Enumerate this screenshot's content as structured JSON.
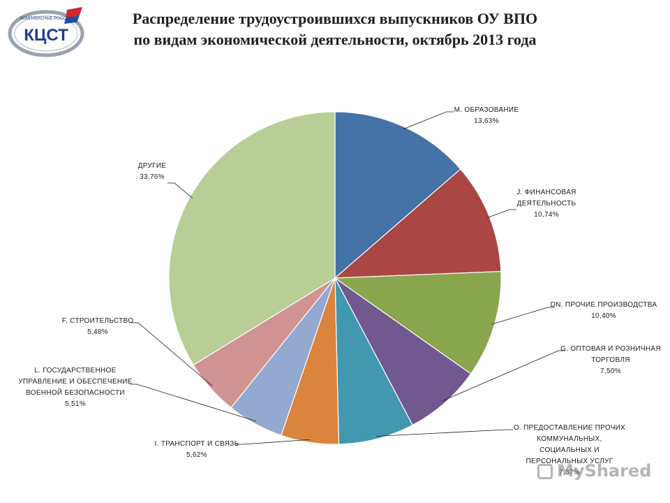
{
  "header": {
    "title_line1": "Распределение трудоустроившихся выпускников ОУ ВПО",
    "title_line2": "по видам экономической деятельности, октябрь 2013 года"
  },
  "logo": {
    "text": "КЦСТ",
    "arc_text": "КОМПЛЕКСНЫЕ РОССИИ",
    "colors": {
      "ring": "#9aa3ad",
      "text": "#1d3f8f",
      "flag_red": "#d22630",
      "flag_blue": "#1d4fa0"
    }
  },
  "watermark": {
    "text": "MyShared"
  },
  "chart_data": {
    "type": "pie",
    "title": "Распределение трудоустроившихся выпускников ОУ ВПО по видам экономической деятельности, октябрь 2013 года",
    "start_angle_deg": 0,
    "direction": "clockwise",
    "slices": [
      {
        "label_lines": [
          "M. ОБРАЗОВАНИЕ"
        ],
        "value": 13.63,
        "value_label": "13,63%",
        "color": "#4572a7"
      },
      {
        "label_lines": [
          "J. ФИНАНСОВАЯ",
          "ДЕЯТЕЛЬНОСТЬ"
        ],
        "value": 10.74,
        "value_label": "10,74%",
        "color": "#aa4643"
      },
      {
        "label_lines": [
          "DN. ПРОЧИЕ ПРОИЗВОДСТВА"
        ],
        "value": 10.4,
        "value_label": "10,40%",
        "color": "#89a54e"
      },
      {
        "label_lines": [
          "G. ОПТОВАЯ И РОЗНИЧНАЯ",
          "ТОРГОВЛЯ"
        ],
        "value": 7.5,
        "value_label": "7,50%",
        "color": "#71588f"
      },
      {
        "label_lines": [
          "O. ПРЕДОСТАВЛЕНИЕ ПРОЧИХ",
          "КОММУНАЛЬНЫХ,",
          "СОЦИАЛЬНЫХ И",
          "ПЕРСОНАЛЬНЫХ УСЛУГ"
        ],
        "value": 7.37,
        "value_label": "7,37%",
        "color": "#4198af"
      },
      {
        "label_lines": [
          "I. ТРАНСПОРТ И СВЯЗЬ"
        ],
        "value": 5.62,
        "value_label": "5,62%",
        "color": "#db843d"
      },
      {
        "label_lines": [
          "L. ГОСУДАРСТВЕННОЕ",
          "УПРАВЛЕНИЕ И ОБЕСПЕЧЕНИЕ",
          "ВОЕННОЙ БЕЗОПАСНОСТИ"
        ],
        "value": 5.51,
        "value_label": "5,51%",
        "color": "#93a9cf"
      },
      {
        "label_lines": [
          "F. СТРОИТЕЛЬСТВО"
        ],
        "value": 5.48,
        "value_label": "5,48%",
        "color": "#d19392"
      },
      {
        "label_lines": [
          "ДРУГИЕ"
        ],
        "value": 33.76,
        "value_label": "33,76%",
        "color": "#b9cd96"
      }
    ]
  }
}
